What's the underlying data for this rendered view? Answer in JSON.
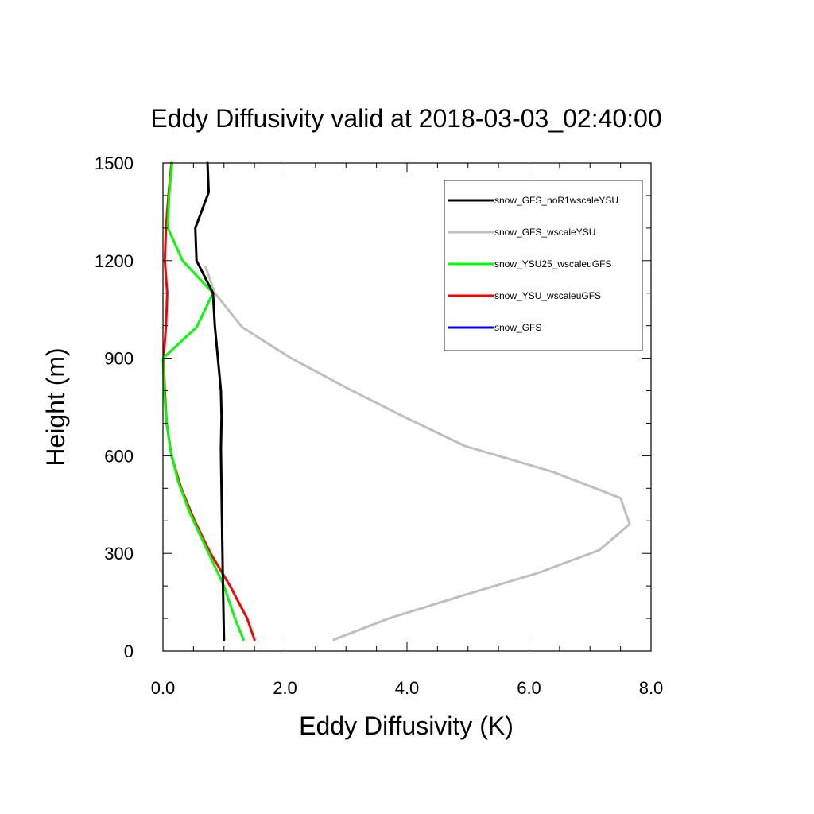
{
  "chart_data": {
    "type": "line",
    "title": "Eddy Diffusivity valid at 2018-03-03_02:40:00",
    "xlabel": "Eddy Diffusivity (K)",
    "ylabel": "Height (m)",
    "xlim": [
      0,
      8
    ],
    "ylim": [
      0,
      1500
    ],
    "xticks": [
      0,
      2,
      4,
      6,
      8
    ],
    "xtick_labels": [
      "0.0",
      "2.0",
      "4.0",
      "6.0",
      "8.0"
    ],
    "yticks": [
      0,
      300,
      600,
      900,
      1200,
      1500
    ],
    "ytick_labels": [
      "0",
      "300",
      "600",
      "900",
      "1200",
      "1500"
    ],
    "grid": false,
    "legend_position": "top-right",
    "series": [
      {
        "name": "snow_GFS_noR1wscaleYSU",
        "color": "#000000",
        "points": [
          [
            1.0,
            35
          ],
          [
            0.98,
            240
          ],
          [
            0.95,
            620
          ],
          [
            0.96,
            720
          ],
          [
            0.95,
            800
          ],
          [
            0.9,
            900
          ],
          [
            0.85,
            1000
          ],
          [
            0.82,
            1100
          ],
          [
            0.55,
            1200
          ],
          [
            0.53,
            1300
          ],
          [
            0.75,
            1410
          ],
          [
            0.73,
            1500
          ]
        ]
      },
      {
        "name": "snow_GFS_wscaleYSU",
        "color": "#bfbfbf",
        "points": [
          [
            2.8,
            35
          ],
          [
            3.7,
            100
          ],
          [
            4.9,
            170
          ],
          [
            6.15,
            240
          ],
          [
            7.15,
            310
          ],
          [
            7.65,
            390
          ],
          [
            7.5,
            470
          ],
          [
            6.4,
            550
          ],
          [
            4.95,
            630
          ],
          [
            3.95,
            720
          ],
          [
            3.0,
            810
          ],
          [
            2.1,
            900
          ],
          [
            1.3,
            995
          ],
          [
            0.85,
            1100
          ],
          [
            0.7,
            1180
          ]
        ]
      },
      {
        "name": "snow_YSU25_wscaleuGFS",
        "color": "#00ff00",
        "points": [
          [
            1.32,
            35
          ],
          [
            1.18,
            100
          ],
          [
            1.0,
            200
          ],
          [
            0.75,
            300
          ],
          [
            0.45,
            420
          ],
          [
            0.25,
            520
          ],
          [
            0.12,
            620
          ],
          [
            0.05,
            720
          ],
          [
            0.02,
            800
          ],
          [
            0.0,
            900
          ],
          [
            0.55,
            995
          ],
          [
            0.82,
            1100
          ],
          [
            0.32,
            1200
          ],
          [
            0.08,
            1300
          ],
          [
            0.1,
            1400
          ],
          [
            0.15,
            1500
          ]
        ]
      },
      {
        "name": "snow_YSU_wscaleuGFS",
        "color": "#ff0000",
        "points": [
          [
            1.5,
            35
          ],
          [
            1.38,
            100
          ],
          [
            1.1,
            200
          ],
          [
            0.78,
            300
          ],
          [
            0.52,
            400
          ],
          [
            0.3,
            500
          ],
          [
            0.14,
            600
          ],
          [
            0.06,
            700
          ],
          [
            0.03,
            800
          ],
          [
            0.01,
            900
          ],
          [
            0.05,
            1000
          ],
          [
            0.07,
            1100
          ],
          [
            0.03,
            1200
          ],
          [
            0.05,
            1300
          ],
          [
            0.09,
            1400
          ],
          [
            0.14,
            1500
          ]
        ]
      },
      {
        "name": "snow_GFS",
        "color": "#0000ff",
        "points": [
          [
            2.8,
            35
          ],
          [
            3.7,
            100
          ],
          [
            4.9,
            170
          ],
          [
            6.15,
            240
          ],
          [
            7.15,
            310
          ],
          [
            7.65,
            390
          ],
          [
            7.5,
            470
          ],
          [
            6.4,
            550
          ],
          [
            4.95,
            630
          ],
          [
            3.95,
            720
          ],
          [
            3.0,
            810
          ],
          [
            2.1,
            900
          ],
          [
            1.3,
            995
          ],
          [
            0.85,
            1100
          ],
          [
            0.7,
            1180
          ]
        ]
      }
    ]
  }
}
